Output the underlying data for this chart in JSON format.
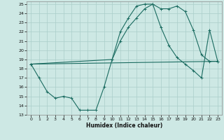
{
  "xlabel": "Humidex (Indice chaleur)",
  "bg_color": "#cde8e4",
  "grid_color": "#aacec9",
  "line_color": "#1a6b60",
  "ylim": [
    13,
    25
  ],
  "xlim": [
    0,
    23
  ],
  "yticks": [
    13,
    14,
    15,
    16,
    17,
    18,
    19,
    20,
    21,
    22,
    23,
    24,
    25
  ],
  "xticks": [
    0,
    1,
    2,
    3,
    4,
    5,
    6,
    7,
    8,
    9,
    10,
    11,
    12,
    13,
    14,
    15,
    16,
    17,
    18,
    19,
    20,
    21,
    22,
    23
  ],
  "series1_x": [
    0,
    1,
    2,
    3,
    4,
    5,
    6,
    7,
    8,
    9,
    10,
    11,
    12,
    13,
    14,
    15,
    16,
    17,
    18,
    19,
    20,
    21,
    22,
    23
  ],
  "series1_y": [
    18.5,
    17.0,
    15.5,
    14.8,
    15.0,
    14.8,
    13.5,
    13.5,
    13.5,
    16.0,
    19.0,
    22.0,
    23.5,
    24.8,
    25.0,
    25.0,
    24.5,
    24.5,
    24.8,
    24.2,
    22.2,
    19.5,
    18.8,
    18.8
  ],
  "series2_x": [
    0,
    10,
    11,
    12,
    13,
    14,
    15,
    16,
    17,
    18,
    19,
    20,
    21,
    22,
    23
  ],
  "series2_y": [
    18.5,
    19.0,
    21.0,
    22.5,
    23.5,
    24.5,
    25.0,
    22.5,
    20.5,
    19.2,
    18.5,
    17.8,
    17.0,
    22.2,
    18.8
  ],
  "series3_x": [
    0,
    23
  ],
  "series3_y": [
    18.5,
    18.8
  ]
}
